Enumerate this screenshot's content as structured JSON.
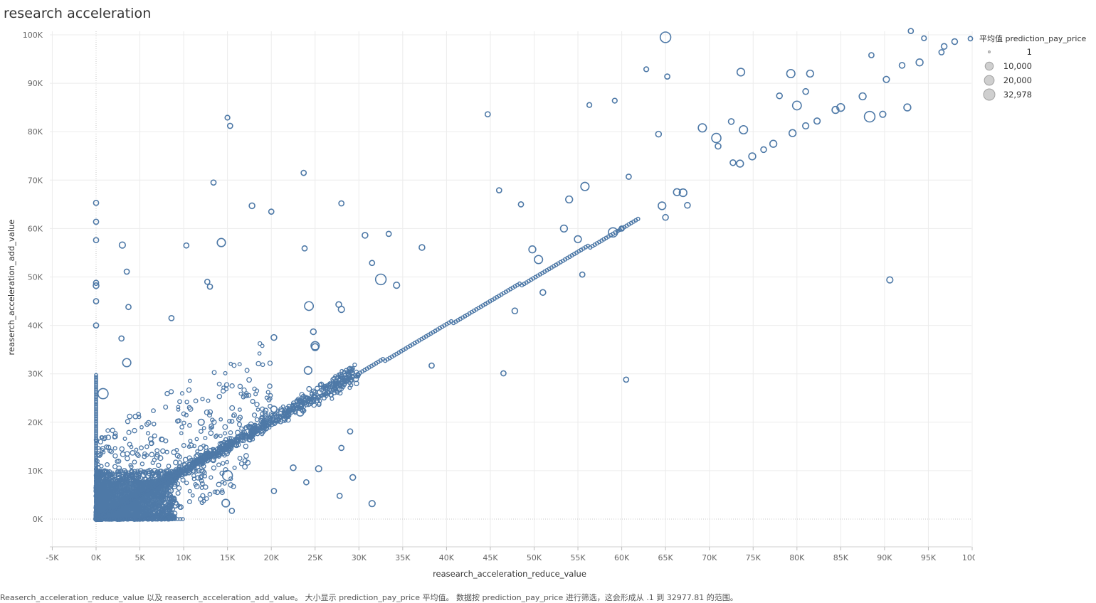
{
  "title": "research acceleration",
  "footer": "Reaserch_acceleration_reduce_value 以及 reaserch_acceleration_add_value。 大小显示 prediction_pay_price 平均值。 数据按 prediction_pay_price 进行筛选，这会形成从 .1 到 32977.81 的范围。",
  "colors": {
    "marker": "#4e79a7",
    "grid": "#ececec",
    "zero_line": "#c8c8c8",
    "legend_fill": "#cfcfcf",
    "legend_stroke": "#a0a0a0"
  },
  "chart_data": {
    "type": "scatter",
    "xlabel": "reasearch_acceleration_reduce_value",
    "ylabel": "reaserch_acceleration_add_value",
    "xlim": [
      -5000,
      100000
    ],
    "ylim": [
      -5000,
      100000
    ],
    "x_ticks": [
      {
        "value": -5000,
        "label": "-5K"
      },
      {
        "value": 0,
        "label": "0K"
      },
      {
        "value": 5000,
        "label": "5K"
      },
      {
        "value": 10000,
        "label": "10K"
      },
      {
        "value": 15000,
        "label": "15K"
      },
      {
        "value": 20000,
        "label": "20K"
      },
      {
        "value": 25000,
        "label": "25K"
      },
      {
        "value": 30000,
        "label": "30K"
      },
      {
        "value": 35000,
        "label": "35K"
      },
      {
        "value": 40000,
        "label": "40K"
      },
      {
        "value": 45000,
        "label": "45K"
      },
      {
        "value": 50000,
        "label": "50K"
      },
      {
        "value": 55000,
        "label": "55K"
      },
      {
        "value": 60000,
        "label": "60K"
      },
      {
        "value": 65000,
        "label": "65K"
      },
      {
        "value": 70000,
        "label": "70K"
      },
      {
        "value": 75000,
        "label": "75K"
      },
      {
        "value": 80000,
        "label": "80K"
      },
      {
        "value": 85000,
        "label": "85K"
      },
      {
        "value": 90000,
        "label": "90K"
      },
      {
        "value": 95000,
        "label": "95K"
      },
      {
        "value": 100000,
        "label": "100K"
      }
    ],
    "y_ticks": [
      {
        "value": 0,
        "label": "0K"
      },
      {
        "value": 10000,
        "label": "10K"
      },
      {
        "value": 20000,
        "label": "20K"
      },
      {
        "value": 30000,
        "label": "30K"
      },
      {
        "value": 40000,
        "label": "40K"
      },
      {
        "value": 50000,
        "label": "50K"
      },
      {
        "value": 60000,
        "label": "60K"
      },
      {
        "value": 70000,
        "label": "70K"
      },
      {
        "value": 80000,
        "label": "80K"
      },
      {
        "value": 90000,
        "label": "90K"
      },
      {
        "value": 100000,
        "label": "100K"
      }
    ],
    "grid": true,
    "size_legend": {
      "title": "平均值 prediction_pay_price",
      "position": "top-right",
      "entries": [
        {
          "label": "1",
          "value": 1
        },
        {
          "label": "10,000",
          "value": 10000
        },
        {
          "label": "20,000",
          "value": 20000
        },
        {
          "label": "32,978",
          "value": 32978
        }
      ]
    },
    "dense_region": {
      "note": "thousands of overlapping points, mostly 0K-25K on both axes, clustered along y = x",
      "x_range": [
        0,
        25000
      ],
      "y_range": [
        0,
        25000
      ]
    },
    "points": [
      {
        "x": 65000,
        "y": 99500,
        "size": 20000
      },
      {
        "x": 93000,
        "y": 100800,
        "size": 2000
      },
      {
        "x": 94500,
        "y": 99300,
        "size": 1500
      },
      {
        "x": 98000,
        "y": 98600,
        "size": 3000
      },
      {
        "x": 99800,
        "y": 99200,
        "size": 1000
      },
      {
        "x": 96800,
        "y": 97600,
        "size": 3000
      },
      {
        "x": 96500,
        "y": 96400,
        "size": 2000
      },
      {
        "x": 88500,
        "y": 95800,
        "size": 2000
      },
      {
        "x": 94000,
        "y": 94300,
        "size": 6000
      },
      {
        "x": 92000,
        "y": 93700,
        "size": 3000
      },
      {
        "x": 62800,
        "y": 92900,
        "size": 1500
      },
      {
        "x": 73600,
        "y": 92300,
        "size": 8000
      },
      {
        "x": 79300,
        "y": 92000,
        "size": 10000
      },
      {
        "x": 81500,
        "y": 92000,
        "size": 6000
      },
      {
        "x": 65200,
        "y": 91400,
        "size": 2000
      },
      {
        "x": 90200,
        "y": 90800,
        "size": 4000
      },
      {
        "x": 81000,
        "y": 88300,
        "size": 3000
      },
      {
        "x": 87500,
        "y": 87300,
        "size": 6000
      },
      {
        "x": 78000,
        "y": 87400,
        "size": 3000
      },
      {
        "x": 59200,
        "y": 86400,
        "size": 1500
      },
      {
        "x": 80000,
        "y": 85400,
        "size": 12000
      },
      {
        "x": 56300,
        "y": 85500,
        "size": 1500
      },
      {
        "x": 92600,
        "y": 85000,
        "size": 6000
      },
      {
        "x": 85000,
        "y": 85000,
        "size": 8000
      },
      {
        "x": 84400,
        "y": 84500,
        "size": 6000
      },
      {
        "x": 44700,
        "y": 83600,
        "size": 2000
      },
      {
        "x": 89800,
        "y": 83600,
        "size": 4000
      },
      {
        "x": 88300,
        "y": 83100,
        "size": 20000
      },
      {
        "x": 15000,
        "y": 82900,
        "size": 1500
      },
      {
        "x": 82300,
        "y": 82200,
        "size": 4000
      },
      {
        "x": 72500,
        "y": 82100,
        "size": 3000
      },
      {
        "x": 15300,
        "y": 81200,
        "size": 2000
      },
      {
        "x": 81000,
        "y": 81200,
        "size": 4000
      },
      {
        "x": 69200,
        "y": 80800,
        "size": 10000
      },
      {
        "x": 73900,
        "y": 80400,
        "size": 10000
      },
      {
        "x": 79500,
        "y": 79700,
        "size": 6000
      },
      {
        "x": 64200,
        "y": 79500,
        "size": 3000
      },
      {
        "x": 70800,
        "y": 78700,
        "size": 14000
      },
      {
        "x": 77300,
        "y": 77500,
        "size": 6000
      },
      {
        "x": 71000,
        "y": 77000,
        "size": 3000
      },
      {
        "x": 76200,
        "y": 76300,
        "size": 3000
      },
      {
        "x": 74900,
        "y": 74900,
        "size": 6000
      },
      {
        "x": 72700,
        "y": 73600,
        "size": 3000
      },
      {
        "x": 73500,
        "y": 73400,
        "size": 6000
      },
      {
        "x": 23700,
        "y": 71500,
        "size": 2000
      },
      {
        "x": 60800,
        "y": 70700,
        "size": 2000
      },
      {
        "x": 13400,
        "y": 69500,
        "size": 2000
      },
      {
        "x": 55800,
        "y": 68700,
        "size": 10000
      },
      {
        "x": 46000,
        "y": 67900,
        "size": 2000
      },
      {
        "x": 66300,
        "y": 67500,
        "size": 6000
      },
      {
        "x": 67000,
        "y": 67400,
        "size": 8000
      },
      {
        "x": 54000,
        "y": 66000,
        "size": 6000
      },
      {
        "x": 48500,
        "y": 65000,
        "size": 2000
      },
      {
        "x": 28000,
        "y": 65200,
        "size": 2000
      },
      {
        "x": 0,
        "y": 65300,
        "size": 2000
      },
      {
        "x": 17800,
        "y": 64700,
        "size": 3000
      },
      {
        "x": 64600,
        "y": 64700,
        "size": 8000
      },
      {
        "x": 67500,
        "y": 64800,
        "size": 3000
      },
      {
        "x": 20000,
        "y": 63500,
        "size": 2000
      },
      {
        "x": 60000,
        "y": 60000,
        "size": 2000
      },
      {
        "x": 65000,
        "y": 62300,
        "size": 3000
      },
      {
        "x": 0,
        "y": 61400,
        "size": 2000
      },
      {
        "x": 53400,
        "y": 60000,
        "size": 6000
      },
      {
        "x": 59000,
        "y": 59200,
        "size": 14000
      },
      {
        "x": 30700,
        "y": 58600,
        "size": 3000
      },
      {
        "x": 33400,
        "y": 58900,
        "size": 2000
      },
      {
        "x": 55000,
        "y": 57800,
        "size": 6000
      },
      {
        "x": 14300,
        "y": 57100,
        "size": 10000
      },
      {
        "x": 0,
        "y": 57600,
        "size": 2000
      },
      {
        "x": 3000,
        "y": 56600,
        "size": 4000
      },
      {
        "x": 10300,
        "y": 56500,
        "size": 2000
      },
      {
        "x": 37200,
        "y": 56100,
        "size": 3000
      },
      {
        "x": 23800,
        "y": 55900,
        "size": 2000
      },
      {
        "x": 49800,
        "y": 55700,
        "size": 6000
      },
      {
        "x": 50500,
        "y": 53600,
        "size": 10000
      },
      {
        "x": 31500,
        "y": 52900,
        "size": 2000
      },
      {
        "x": 55500,
        "y": 50500,
        "size": 2000
      },
      {
        "x": 3500,
        "y": 51100,
        "size": 2000
      },
      {
        "x": 32500,
        "y": 49500,
        "size": 20000
      },
      {
        "x": 90600,
        "y": 49400,
        "size": 4000
      },
      {
        "x": 12700,
        "y": 49000,
        "size": 2000
      },
      {
        "x": 0,
        "y": 48800,
        "size": 2000
      },
      {
        "x": 0,
        "y": 48200,
        "size": 3000
      },
      {
        "x": 34300,
        "y": 48300,
        "size": 4000
      },
      {
        "x": 13000,
        "y": 48000,
        "size": 2000
      },
      {
        "x": 51000,
        "y": 46800,
        "size": 3000
      },
      {
        "x": 0,
        "y": 45000,
        "size": 2000
      },
      {
        "x": 24300,
        "y": 44000,
        "size": 12000
      },
      {
        "x": 27700,
        "y": 44300,
        "size": 3000
      },
      {
        "x": 3700,
        "y": 43800,
        "size": 2000
      },
      {
        "x": 28000,
        "y": 43300,
        "size": 4000
      },
      {
        "x": 47800,
        "y": 43000,
        "size": 3000
      },
      {
        "x": 8600,
        "y": 41500,
        "size": 2000
      },
      {
        "x": 0,
        "y": 40000,
        "size": 2000
      },
      {
        "x": 24800,
        "y": 38700,
        "size": 3000
      },
      {
        "x": 2900,
        "y": 37300,
        "size": 2000
      },
      {
        "x": 20300,
        "y": 37500,
        "size": 3000
      },
      {
        "x": 25000,
        "y": 35800,
        "size": 10000
      },
      {
        "x": 25000,
        "y": 35500,
        "size": 6000
      },
      {
        "x": 3500,
        "y": 32300,
        "size": 10000
      },
      {
        "x": 38300,
        "y": 31700,
        "size": 2000
      },
      {
        "x": 24200,
        "y": 30700,
        "size": 8000
      },
      {
        "x": 46500,
        "y": 30100,
        "size": 2000
      },
      {
        "x": 60500,
        "y": 28800,
        "size": 2000
      },
      {
        "x": 800,
        "y": 25900,
        "size": 18000
      },
      {
        "x": 21200,
        "y": 22000,
        "size": 8000
      },
      {
        "x": 20300,
        "y": 22700,
        "size": 4000
      },
      {
        "x": 23300,
        "y": 22000,
        "size": 6000
      },
      {
        "x": 12000,
        "y": 20000,
        "size": 4000
      },
      {
        "x": 29000,
        "y": 18100,
        "size": 2000
      },
      {
        "x": 28000,
        "y": 14700,
        "size": 2000
      },
      {
        "x": 22500,
        "y": 10600,
        "size": 3000
      },
      {
        "x": 25400,
        "y": 10400,
        "size": 4000
      },
      {
        "x": 15000,
        "y": 9000,
        "size": 17000
      },
      {
        "x": 29300,
        "y": 8600,
        "size": 3000
      },
      {
        "x": 24000,
        "y": 7600,
        "size": 2000
      },
      {
        "x": 20300,
        "y": 5800,
        "size": 2000
      },
      {
        "x": 27800,
        "y": 4800,
        "size": 2000
      },
      {
        "x": 14800,
        "y": 3300,
        "size": 8000
      },
      {
        "x": 31500,
        "y": 3200,
        "size": 4000
      },
      {
        "x": 9000,
        "y": 3000,
        "size": 6000
      },
      {
        "x": 15500,
        "y": 1700,
        "size": 2000
      }
    ]
  }
}
